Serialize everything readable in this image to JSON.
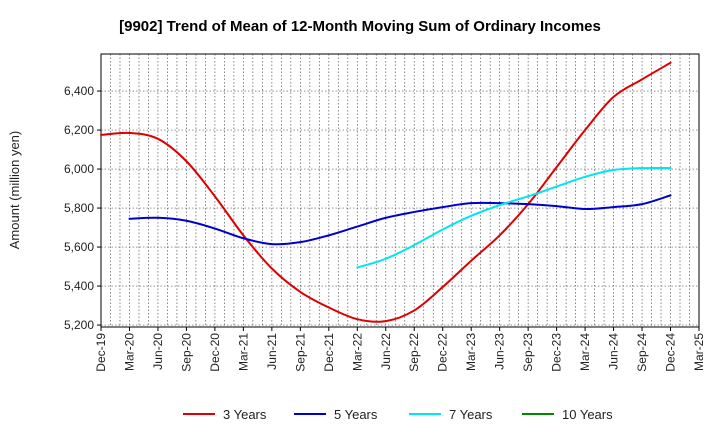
{
  "chart_data": {
    "type": "line",
    "title": "[9902]  Trend of Mean of 12-Month Moving Sum of Ordinary Incomes",
    "xlabel": "",
    "ylabel": "Amount (million yen)",
    "ylim": [
      5190,
      6590
    ],
    "yticks": [
      5200,
      5400,
      5600,
      5800,
      6000,
      6200,
      6400
    ],
    "ytick_labels": [
      "5,200",
      "5,400",
      "5,600",
      "5,800",
      "6,000",
      "6,200",
      "6,400"
    ],
    "categories": [
      "Dec-19",
      "Mar-20",
      "Jun-20",
      "Sep-20",
      "Dec-20",
      "Mar-21",
      "Jun-21",
      "Sep-21",
      "Dec-21",
      "Mar-22",
      "Jun-22",
      "Sep-22",
      "Dec-22",
      "Mar-23",
      "Jun-23",
      "Sep-23",
      "Dec-23",
      "Mar-24",
      "Jun-24",
      "Sep-24",
      "Dec-24",
      "Mar-25"
    ],
    "grid": true,
    "legend_position": "bottom",
    "series": [
      {
        "name": "3 Years",
        "color": "#dd0000",
        "values": [
          6175,
          6185,
          6155,
          6040,
          5860,
          5660,
          5490,
          5370,
          5290,
          5230,
          5220,
          5275,
          5395,
          5530,
          5660,
          5820,
          6010,
          6200,
          6370,
          6460,
          6545,
          null
        ]
      },
      {
        "name": "5 Years",
        "color": "#0000cc",
        "values": [
          null,
          5745,
          5750,
          5735,
          5695,
          5645,
          5615,
          5625,
          5660,
          5705,
          5750,
          5780,
          5805,
          5825,
          5825,
          5820,
          5810,
          5795,
          5805,
          5820,
          5865,
          null
        ]
      },
      {
        "name": "7 Years",
        "color": "#00e5ee",
        "values": [
          null,
          null,
          null,
          null,
          null,
          null,
          null,
          null,
          null,
          5495,
          5540,
          5610,
          5690,
          5760,
          5815,
          5860,
          5910,
          5960,
          5995,
          6005,
          6005,
          null
        ]
      },
      {
        "name": "10 Years",
        "color": "#008800",
        "values": [
          null,
          null,
          null,
          null,
          null,
          null,
          null,
          null,
          null,
          null,
          null,
          null,
          null,
          null,
          null,
          null,
          null,
          null,
          null,
          null,
          null,
          null
        ]
      }
    ]
  }
}
